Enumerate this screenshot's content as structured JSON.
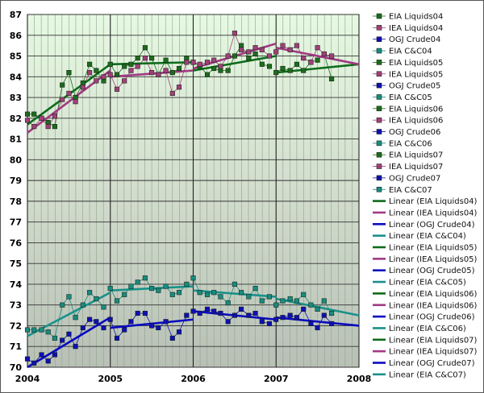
{
  "chart_data": {
    "type": "line",
    "title": "",
    "xlabel": "",
    "ylabel": "",
    "xlim": [
      2004,
      2008
    ],
    "ylim": [
      70,
      87
    ],
    "x_ticks": [
      "2004",
      "2005",
      "2006",
      "2007",
      "2008"
    ],
    "y_ticks": [
      "70",
      "71",
      "72",
      "73",
      "74",
      "75",
      "76",
      "77",
      "78",
      "79",
      "80",
      "81",
      "82",
      "83",
      "84",
      "85",
      "86",
      "87"
    ],
    "grid": true,
    "legend_position": "right",
    "colors": {
      "eia_liquids": "#1e6b1e",
      "iea_liquids": "#a0407a",
      "ogj_crude": "#1010b0",
      "eia_cc": "#1a8a80",
      "linear_eia_liquids": "#0d6b1a",
      "linear_iea_liquids": "#a03a82",
      "linear_ogj_crude": "#0a0ac0",
      "linear_eia_cc": "#18918a"
    },
    "series": [
      {
        "name": "EIA Liquids04",
        "kind": "eia_liquids",
        "x": [
          2004.0,
          2004.08,
          2004.17,
          2004.25,
          2004.33,
          2004.42,
          2004.5,
          2004.58,
          2004.67,
          2004.75,
          2004.83,
          2004.92
        ],
        "y": [
          82.2,
          82.2,
          82.0,
          81.8,
          81.6,
          83.6,
          84.2,
          83.0,
          83.7,
          84.6,
          84.3,
          83.8
        ]
      },
      {
        "name": "IEA Liquids04",
        "kind": "iea_liquids",
        "x": [
          2004.0,
          2004.08,
          2004.17,
          2004.25,
          2004.33,
          2004.42,
          2004.5,
          2004.58,
          2004.67,
          2004.75,
          2004.83,
          2004.92
        ],
        "y": [
          81.9,
          81.6,
          82.0,
          81.6,
          82.1,
          82.9,
          83.2,
          82.8,
          83.5,
          84.2,
          83.8,
          84.0
        ]
      },
      {
        "name": "OGJ Crude04",
        "kind": "ogj_crude",
        "x": [
          2004.0,
          2004.08,
          2004.17,
          2004.25,
          2004.33,
          2004.42,
          2004.5,
          2004.58,
          2004.67,
          2004.75,
          2004.83,
          2004.92
        ],
        "y": [
          70.4,
          70.2,
          70.6,
          70.3,
          70.6,
          71.3,
          71.6,
          71.0,
          71.9,
          72.3,
          72.2,
          71.9
        ]
      },
      {
        "name": "EIA C&C04",
        "kind": "eia_cc",
        "x": [
          2004.0,
          2004.08,
          2004.17,
          2004.25,
          2004.33,
          2004.42,
          2004.5,
          2004.58,
          2004.67,
          2004.75,
          2004.83,
          2004.92
        ],
        "y": [
          71.8,
          71.8,
          71.8,
          71.7,
          71.4,
          73.0,
          73.4,
          72.4,
          73.0,
          73.6,
          73.3,
          72.9
        ]
      },
      {
        "name": "EIA Liquids05",
        "kind": "eia_liquids",
        "x": [
          2005.0,
          2005.08,
          2005.17,
          2005.25,
          2005.33,
          2005.42,
          2005.5,
          2005.58,
          2005.67,
          2005.75,
          2005.83,
          2005.92
        ],
        "y": [
          84.6,
          84.1,
          84.5,
          84.6,
          84.9,
          85.4,
          84.9,
          84.1,
          84.8,
          84.2,
          84.4,
          84.9
        ]
      },
      {
        "name": "IEA Liquids05",
        "kind": "iea_liquids",
        "x": [
          2005.0,
          2005.08,
          2005.17,
          2005.25,
          2005.33,
          2005.42,
          2005.5,
          2005.58,
          2005.67,
          2005.75,
          2005.83,
          2005.92
        ],
        "y": [
          84.1,
          83.4,
          83.8,
          84.3,
          84.5,
          84.9,
          84.2,
          84.1,
          84.3,
          83.2,
          83.5,
          84.7
        ]
      },
      {
        "name": "OGJ Crude05",
        "kind": "ogj_crude",
        "x": [
          2005.0,
          2005.08,
          2005.17,
          2005.25,
          2005.33,
          2005.42,
          2005.5,
          2005.58,
          2005.67,
          2005.75,
          2005.83,
          2005.92
        ],
        "y": [
          72.3,
          71.4,
          71.8,
          72.2,
          72.6,
          72.6,
          72.0,
          71.9,
          72.2,
          71.4,
          71.7,
          72.5
        ]
      },
      {
        "name": "EIA C&C05",
        "kind": "eia_cc",
        "x": [
          2005.0,
          2005.08,
          2005.17,
          2005.25,
          2005.33,
          2005.42,
          2005.5,
          2005.58,
          2005.67,
          2005.75,
          2005.83,
          2005.92
        ],
        "y": [
          73.8,
          73.2,
          73.5,
          73.9,
          74.1,
          74.3,
          73.8,
          73.7,
          73.9,
          73.5,
          73.6,
          74.0
        ]
      },
      {
        "name": "EIA Liquids06",
        "kind": "eia_liquids",
        "x": [
          2006.0,
          2006.08,
          2006.17,
          2006.25,
          2006.33,
          2006.42,
          2006.5,
          2006.58,
          2006.67,
          2006.75,
          2006.83,
          2006.92
        ],
        "y": [
          84.7,
          84.5,
          84.1,
          84.4,
          84.3,
          84.3,
          85.0,
          85.5,
          84.9,
          85.1,
          84.6,
          84.5
        ]
      },
      {
        "name": "IEA Liquids06",
        "kind": "iea_liquids",
        "x": [
          2006.0,
          2006.08,
          2006.17,
          2006.25,
          2006.33,
          2006.42,
          2006.5,
          2006.58,
          2006.67,
          2006.75,
          2006.83,
          2006.92
        ],
        "y": [
          84.7,
          84.6,
          84.7,
          84.8,
          84.5,
          85.0,
          86.1,
          85.3,
          85.2,
          85.4,
          85.3,
          85.0
        ]
      },
      {
        "name": "OGJ Crude06",
        "kind": "ogj_crude",
        "x": [
          2006.0,
          2006.08,
          2006.17,
          2006.25,
          2006.33,
          2006.42,
          2006.5,
          2006.58,
          2006.67,
          2006.75,
          2006.83,
          2006.92
        ],
        "y": [
          72.7,
          72.6,
          72.8,
          72.7,
          72.6,
          72.2,
          72.5,
          72.8,
          72.5,
          72.6,
          72.2,
          72.1
        ]
      },
      {
        "name": "EIA C&C06",
        "kind": "eia_cc",
        "x": [
          2006.0,
          2006.08,
          2006.17,
          2006.25,
          2006.33,
          2006.42,
          2006.5,
          2006.58,
          2006.67,
          2006.75,
          2006.83,
          2006.92
        ],
        "y": [
          74.3,
          73.6,
          73.5,
          73.6,
          73.4,
          73.1,
          74.0,
          73.6,
          73.4,
          73.8,
          73.2,
          73.4
        ]
      },
      {
        "name": "EIA Liquids07",
        "kind": "eia_liquids",
        "x": [
          2007.0,
          2007.08,
          2007.17,
          2007.25,
          2007.33,
          2007.42,
          2007.5,
          2007.58,
          2007.67
        ],
        "y": [
          84.2,
          84.4,
          84.3,
          84.6,
          84.3,
          84.7,
          84.8,
          85.1,
          83.9
        ]
      },
      {
        "name": "IEA Liquids07",
        "kind": "iea_liquids",
        "x": [
          2007.0,
          2007.08,
          2007.17,
          2007.25,
          2007.33,
          2007.42,
          2007.5,
          2007.58,
          2007.67
        ],
        "y": [
          85.2,
          85.5,
          85.3,
          85.5,
          84.9,
          84.7,
          85.4,
          85.1,
          85.0
        ]
      },
      {
        "name": "OGJ Crude07",
        "kind": "ogj_crude",
        "x": [
          2007.0,
          2007.08,
          2007.17,
          2007.25,
          2007.33,
          2007.42,
          2007.5,
          2007.58,
          2007.67
        ],
        "y": [
          72.3,
          72.4,
          72.5,
          72.4,
          72.8,
          72.1,
          71.9,
          72.5,
          72.1
        ]
      },
      {
        "name": "EIA C&C07",
        "kind": "eia_cc",
        "x": [
          2007.0,
          2007.08,
          2007.17,
          2007.25,
          2007.33,
          2007.42,
          2007.5,
          2007.58,
          2007.67
        ],
        "y": [
          73.0,
          73.2,
          73.3,
          73.2,
          73.5,
          73.0,
          72.8,
          73.2,
          72.6
        ]
      }
    ],
    "trendlines": [
      {
        "name": "Linear (EIA Liquids04)",
        "kind": "linear_eia_liquids",
        "x": [
          2004,
          2005
        ],
        "y": [
          81.7,
          84.6
        ]
      },
      {
        "name": "Linear (IEA Liquids04)",
        "kind": "linear_iea_liquids",
        "x": [
          2004,
          2005
        ],
        "y": [
          81.3,
          84.3
        ]
      },
      {
        "name": "Linear (OGJ Crude04)",
        "kind": "linear_ogj_crude",
        "x": [
          2004,
          2005
        ],
        "y": [
          70.0,
          72.4
        ]
      },
      {
        "name": "Linear (EIA C&C04)",
        "kind": "linear_eia_cc",
        "x": [
          2004,
          2005
        ],
        "y": [
          71.5,
          73.6
        ]
      },
      {
        "name": "Linear (EIA Liquids05)",
        "kind": "linear_eia_liquids",
        "x": [
          2005,
          2006
        ],
        "y": [
          84.6,
          84.7
        ]
      },
      {
        "name": "Linear (IEA Liquids05)",
        "kind": "linear_iea_liquids",
        "x": [
          2005,
          2006
        ],
        "y": [
          84.0,
          84.3
        ]
      },
      {
        "name": "Linear (OGJ Crude05)",
        "kind": "linear_ogj_crude",
        "x": [
          2005,
          2006
        ],
        "y": [
          71.9,
          72.3
        ]
      },
      {
        "name": "Linear (EIA C&C05)",
        "kind": "linear_eia_cc",
        "x": [
          2005,
          2006
        ],
        "y": [
          73.7,
          73.9
        ]
      },
      {
        "name": "Linear (EIA Liquids06)",
        "kind": "linear_eia_liquids",
        "x": [
          2006,
          2007
        ],
        "y": [
          84.3,
          85.0
        ]
      },
      {
        "name": "Linear (IEA Liquids06)",
        "kind": "linear_iea_liquids",
        "x": [
          2006,
          2007
        ],
        "y": [
          84.4,
          85.6
        ]
      },
      {
        "name": "Linear (OGJ Crude06)",
        "kind": "linear_ogj_crude",
        "x": [
          2006,
          2007
        ],
        "y": [
          72.7,
          72.3
        ]
      },
      {
        "name": "Linear (EIA C&C06)",
        "kind": "linear_eia_cc",
        "x": [
          2006,
          2007
        ],
        "y": [
          73.7,
          73.4
        ]
      },
      {
        "name": "Linear (EIA Liquids07)",
        "kind": "linear_eia_liquids",
        "x": [
          2007,
          2008
        ],
        "y": [
          84.2,
          84.6
        ]
      },
      {
        "name": "Linear (IEA Liquids07)",
        "kind": "linear_iea_liquids",
        "x": [
          2007,
          2008
        ],
        "y": [
          85.4,
          84.6
        ]
      },
      {
        "name": "Linear (OGJ Crude07)",
        "kind": "linear_ogj_crude",
        "x": [
          2007,
          2008
        ],
        "y": [
          72.4,
          72.0
        ]
      },
      {
        "name": "Linear (EIA C&C07)",
        "kind": "linear_eia_cc",
        "x": [
          2007,
          2008
        ],
        "y": [
          73.3,
          72.5
        ]
      }
    ]
  }
}
